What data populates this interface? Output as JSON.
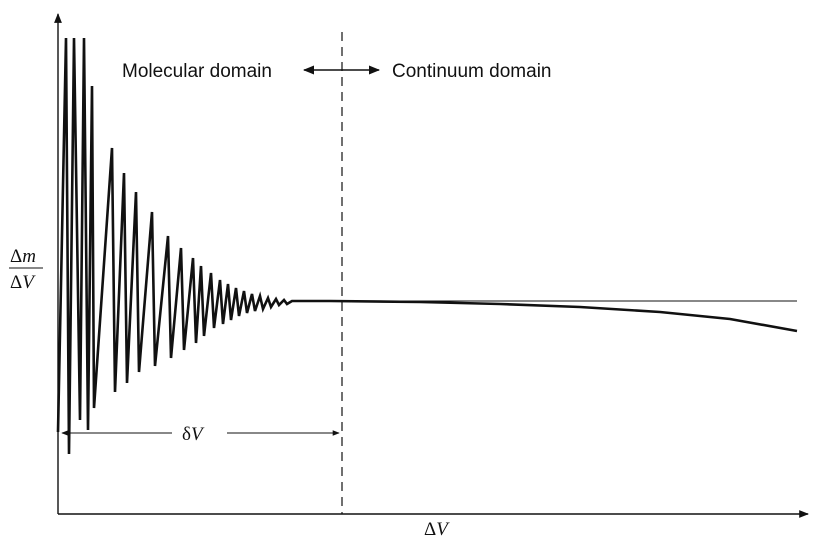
{
  "labels": {
    "molecular_domain": "Molecular domain",
    "continuum_domain": "Continuum domain",
    "x_axis_delta": "Δ",
    "x_axis_var": "V",
    "y_axis_num_delta": "Δ",
    "y_axis_num_var": "m",
    "y_axis_den_delta": "Δ",
    "y_axis_den_var": "V",
    "delta_v_greek": "δ",
    "delta_v_var": "V"
  },
  "colors": {
    "ink": "#111111",
    "background": "#ffffff"
  }
}
